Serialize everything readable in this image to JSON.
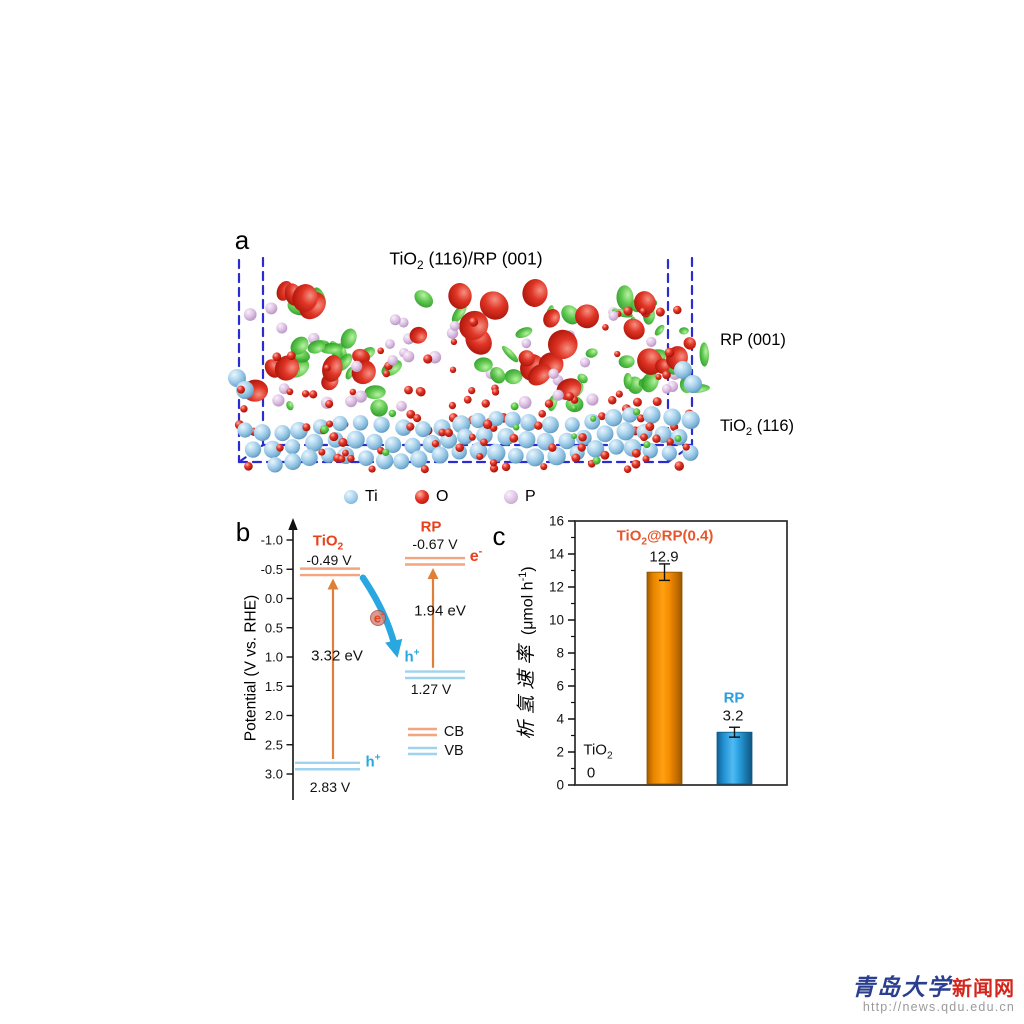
{
  "panel_a": {
    "label": "a",
    "title": {
      "pre": "TiO",
      "sub": "2",
      "post": " (116)/RP (001)"
    },
    "layer_label_rp": "RP (001)",
    "layer_label_tio2": {
      "pre": "TiO",
      "sub": "2",
      "post": " (116)"
    },
    "legend": {
      "items": [
        {
          "name": "Ti",
          "color": "#aed5ee"
        },
        {
          "name": "O",
          "color": "#e03526"
        },
        {
          "name": "P",
          "color": "#dcc0e2"
        }
      ]
    },
    "art": {
      "box_color": "#2b2bd2",
      "ti_color": "#aed5ee",
      "o_color": "#e03526",
      "p_color": "#dcc0e2",
      "green_blob_color": "#54c443",
      "red_blob_color": "#e03526"
    }
  },
  "panel_b": {
    "label": "b",
    "ylabel": "Potential (V vs. RHE)",
    "axis_min": -1.0,
    "axis_max": 3.0,
    "yticks": [
      "-1.0",
      "-0.5",
      "0.0",
      "0.5",
      "1.0",
      "1.5",
      "2.0",
      "2.5",
      "3.0"
    ],
    "tio2": {
      "name": {
        "pre": "TiO",
        "sub": "2"
      },
      "cb_v": -0.49,
      "cb_label": "-0.49 V",
      "vb_v": 2.83,
      "vb_label": "2.83 V",
      "gap_label": "3.32 eV",
      "hole": {
        "pre": "h",
        "sup": "+"
      }
    },
    "rp": {
      "name": "RP",
      "cb_v": -0.67,
      "cb_label": "-0.67 V",
      "vb_v": 1.27,
      "vb_label": "1.27 V",
      "gap_label": "1.94 eV",
      "electron": {
        "pre": "e",
        "sup": "-"
      },
      "hole": {
        "pre": "h",
        "sup": "+"
      }
    },
    "transfer_electron": {
      "pre": "e",
      "sup": "-"
    },
    "legend": {
      "cb": "CB",
      "vb": "VB"
    },
    "colors": {
      "cb_line": "#f2a57e",
      "vb_line": "#9fd2ee",
      "arrow_orange": "#e07f38",
      "label_orange": "#e8401c",
      "hole_blue": "#29a7e1",
      "transfer_arrow": "#29a7e1"
    }
  },
  "panel_c": {
    "label": "c",
    "ylabel_cn": "析氢速率",
    "ylabel_unit": {
      "pre": " (μmol h",
      "sup": "-1",
      "post": ")"
    },
    "bar1_label": {
      "pre": "TiO",
      "sub": "2",
      "post": "@RP(0.4)"
    },
    "bar1_value": "12.9",
    "bar2_label": "RP",
    "bar2_value": "3.2",
    "zero_label": {
      "pre": "TiO",
      "sub": "2"
    },
    "zero_value": "0",
    "colors": {
      "bar1": "#f08c00",
      "bar2": "#2ba0e2",
      "label1": "#e8552a",
      "label2": "#2b9ede"
    }
  },
  "chart_data": {
    "type": "bar",
    "categories": [
      "TiO2",
      "TiO2@RP(0.4)",
      "RP"
    ],
    "values": [
      0,
      12.9,
      3.2
    ],
    "errors": [
      0,
      0.5,
      0.3
    ],
    "value_labels": [
      "0",
      "12.9",
      "3.2"
    ],
    "title": "",
    "xlabel": "",
    "ylabel": "析氢速率 (μmol h-1)",
    "ylim": [
      0,
      16
    ],
    "ytick_step": 2,
    "bar_colors": [
      "none",
      "#f08c00",
      "#2ba0e2"
    ],
    "grid": false,
    "legend_position": "none"
  },
  "watermark": {
    "site_name": "青岛大学",
    "site_suffix": "新闻网",
    "url": "http://news.qdu.edu.cn"
  }
}
